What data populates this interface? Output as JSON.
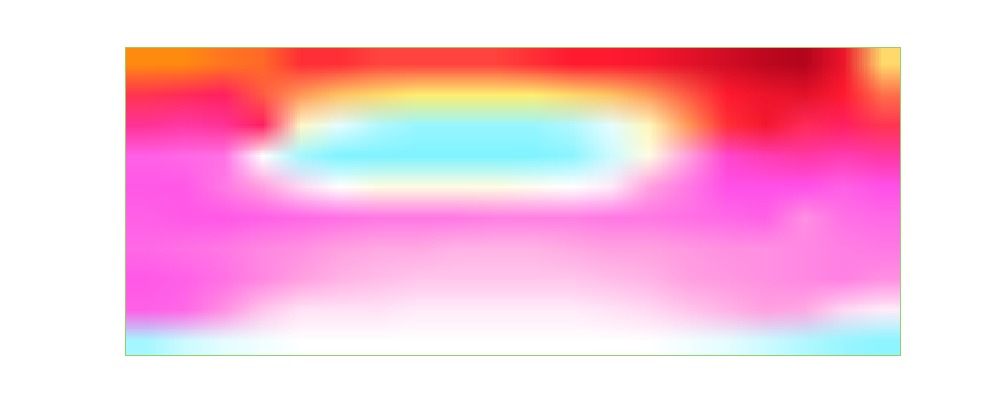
{
  "chart_data": {
    "type": "heatmap",
    "tick_labels": false,
    "xlim": [
      0,
      20
    ],
    "ylim": [
      0,
      10
    ],
    "zlim": [
      0,
      9
    ],
    "cells": [
      [
        9,
        9,
        8.8,
        8.7,
        1.1,
        1.1,
        1.2,
        1.2,
        1.2,
        1.2,
        1.1,
        1.0,
        1.0,
        0.9,
        0.7,
        0.5,
        0.3,
        0.2,
        0.8,
        1.9
      ],
      [
        8.2,
        8.1,
        8.0,
        1.3,
        1.6,
        1.8,
        1.9,
        2.0,
        2.0,
        2.0,
        2.0,
        1.9,
        1.8,
        1.6,
        1.3,
        1.0,
        0.8,
        0.7,
        1.0,
        1.4
      ],
      [
        7.6,
        7.5,
        7.6,
        8.0,
        2.6,
        3.2,
        3.6,
        3.8,
        3.8,
        3.8,
        3.8,
        3.6,
        3.2,
        2.5,
        1.6,
        1.1,
        0.9,
        8.1,
        8.0,
        8.2
      ],
      [
        6.8,
        6.7,
        6.6,
        3.0,
        3.7,
        4.0,
        4.0,
        4.0,
        4.0,
        4.0,
        4.0,
        3.9,
        3.4,
        2.8,
        6.0,
        7.2,
        7.4,
        7.5,
        7.4,
        7.5
      ],
      [
        6.9,
        6.9,
        6.5,
        6.0,
        5.4,
        3.0,
        2.8,
        2.8,
        2.8,
        2.8,
        2.9,
        3.0,
        5.2,
        6.0,
        6.5,
        7.0,
        7.0,
        7.0,
        6.8,
        7.0
      ],
      [
        6.8,
        6.9,
        6.9,
        6.8,
        6.7,
        6.6,
        6.5,
        6.5,
        6.5,
        6.4,
        6.4,
        6.4,
        6.5,
        6.5,
        6.6,
        6.7,
        6.8,
        6.2,
        6.6,
        6.7
      ],
      [
        6.7,
        6.6,
        6.5,
        6.3,
        6.2,
        6.0,
        5.9,
        5.9,
        5.8,
        5.8,
        5.8,
        5.9,
        6.0,
        6.0,
        6.1,
        6.2,
        6.2,
        6.3,
        6.4,
        6.5
      ],
      [
        6.9,
        6.8,
        6.6,
        6.3,
        6.0,
        5.8,
        5.7,
        5.6,
        5.6,
        5.6,
        5.6,
        5.6,
        5.7,
        5.8,
        6.0,
        6.1,
        6.2,
        6.3,
        6.4,
        6.2
      ],
      [
        6.8,
        6.7,
        6.2,
        5.6,
        5.3,
        5.3,
        5.3,
        5.2,
        5.2,
        5.2,
        5.2,
        5.2,
        5.3,
        5.4,
        5.6,
        5.8,
        6.0,
        5.9,
        5.4,
        5.2
      ],
      [
        4.3,
        4.6,
        4.8,
        4.9,
        5.0,
        5.0,
        5.0,
        5.0,
        5.0,
        5.0,
        5.0,
        5.0,
        5.0,
        5.0,
        4.9,
        4.8,
        4.6,
        4.4,
        4.2,
        4.1
      ]
    ]
  }
}
